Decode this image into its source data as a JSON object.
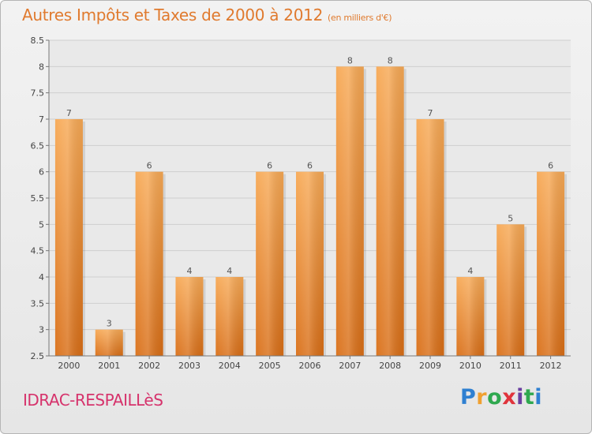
{
  "title": "Autres Impôts et Taxes de 2000 à 2012",
  "subtitle": "(en milliers d'€)",
  "commune": "IDRAC-RESPAILLèS",
  "logo": {
    "text": "Proxiti",
    "letter_colors": [
      "#2f80d1",
      "#f0a030",
      "#2fa84f",
      "#e0343c",
      "#6a3fa0",
      "#2fa84f",
      "#2f80d1"
    ]
  },
  "colors": {
    "bar": "#f0922e",
    "bar_light": "#f7ad5c",
    "bar_dark": "#d96e16",
    "title": "#e07a2e",
    "commune": "#d6336c"
  },
  "chart_data": {
    "type": "bar",
    "categories": [
      "2000",
      "2001",
      "2002",
      "2003",
      "2004",
      "2005",
      "2006",
      "2007",
      "2008",
      "2009",
      "2010",
      "2011",
      "2012"
    ],
    "values": [
      7,
      3,
      6,
      4,
      4,
      6,
      6,
      8,
      8,
      7,
      4,
      5,
      6
    ],
    "data_labels": [
      "7",
      "3",
      "6",
      "4",
      "4",
      "6",
      "6",
      "8",
      "8",
      "7",
      "4",
      "5",
      "6"
    ],
    "ylim": [
      2.5,
      8.5
    ],
    "yticks": [
      "2.5",
      "3",
      "3.5",
      "4",
      "4.5",
      "5",
      "5.5",
      "6",
      "6.5",
      "7",
      "7.5",
      "8",
      "8.5"
    ],
    "grid": true,
    "title": "Autres Impôts et Taxes de 2000 à 2012",
    "xlabel": "",
    "ylabel": ""
  }
}
